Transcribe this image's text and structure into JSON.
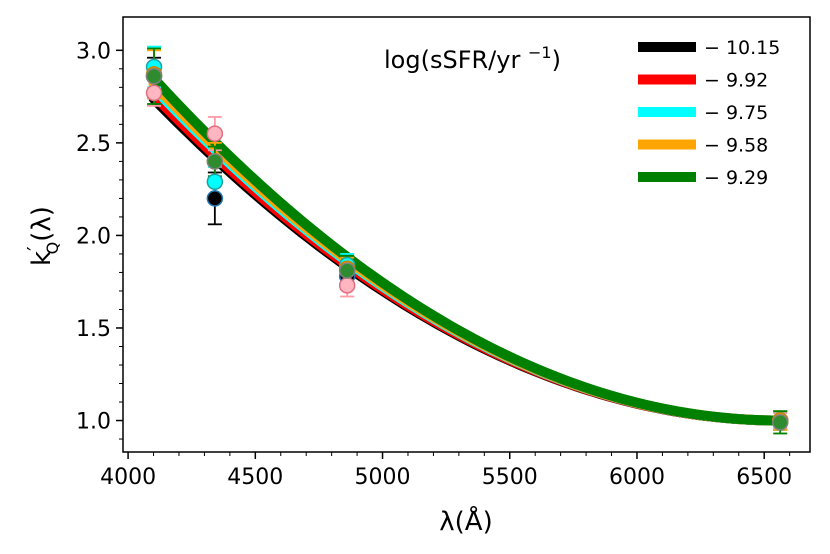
{
  "chart_data": {
    "type": "line",
    "xlabel": "λ(Å)",
    "ylabel_main": "k",
    "ylabel_prime": "′",
    "ylabel_sub": "Q",
    "ylabel_tail": "(λ)",
    "xlim": [
      3980,
      6680
    ],
    "ylim": [
      0.83,
      3.18
    ],
    "x_ticks": [
      4000,
      4500,
      5000,
      5500,
      6000,
      6500
    ],
    "x_tick_labels": [
      "4000",
      "4500",
      "5000",
      "5500",
      "6000",
      "6500"
    ],
    "y_ticks": [
      1.0,
      1.5,
      2.0,
      2.5,
      3.0
    ],
    "y_tick_labels": [
      "1.0",
      "1.5",
      "2.0",
      "2.5",
      "3.0"
    ],
    "legend": {
      "title": "log(sSFR/yr⁻¹)",
      "placement": "top-right"
    },
    "series": [
      {
        "name": "− 10.15",
        "color": "#000000",
        "curve": {
          "x": [
            4100,
            6563
          ],
          "y_start": 2.74,
          "y_end": 1.0,
          "power": 1.25
        },
        "points": [
          {
            "x": 4102,
            "y": 2.86,
            "err": 0.1,
            "face": "#000000"
          },
          {
            "x": 4341,
            "y": 2.2,
            "err": 0.14,
            "face": "#000000"
          },
          {
            "x": 4861,
            "y": 1.78,
            "err": 0.07,
            "face": "#000000"
          },
          {
            "x": 6563,
            "y": 1.0,
            "err": 0.05,
            "face": "#000000"
          }
        ]
      },
      {
        "name": "− 9.92",
        "color": "#ff0000",
        "curve": {
          "x": [
            4100,
            6563
          ],
          "y_start": 2.76,
          "y_end": 1.0,
          "power": 1.22
        },
        "points": [
          {
            "x": 4102,
            "y": 2.77,
            "err": 0.07,
            "face": "#ffb6c1"
          },
          {
            "x": 4341,
            "y": 2.55,
            "err": 0.09,
            "face": "#ffb6c1"
          },
          {
            "x": 4861,
            "y": 1.73,
            "err": 0.06,
            "face": "#ffb6c1"
          },
          {
            "x": 6563,
            "y": 1.0,
            "err": 0.04,
            "face": "#ffb6c1"
          }
        ]
      },
      {
        "name": "− 9.75",
        "color": "#00ffff",
        "curve": {
          "x": [
            4100,
            6563
          ],
          "y_start": 2.8,
          "y_end": 1.0,
          "power": 1.2
        },
        "points": [
          {
            "x": 4102,
            "y": 2.91,
            "err": 0.11,
            "face": "#00ffff"
          },
          {
            "x": 4341,
            "y": 2.29,
            "err": 0.08,
            "face": "#00ffff"
          },
          {
            "x": 4861,
            "y": 1.84,
            "err": 0.06,
            "face": "#00ffff"
          },
          {
            "x": 6563,
            "y": 1.0,
            "err": 0.05,
            "face": "#00ffff"
          }
        ]
      },
      {
        "name": "− 9.58",
        "color": "#ffa500",
        "curve": {
          "x": [
            4100,
            6563
          ],
          "y_start": 2.82,
          "y_end": 1.0,
          "power": 1.17
        },
        "points": [
          {
            "x": 4102,
            "y": 2.87,
            "err": 0.13,
            "face": "#ffa500"
          },
          {
            "x": 4341,
            "y": 2.4,
            "err": 0.1,
            "face": "#ffa500"
          },
          {
            "x": 4861,
            "y": 1.82,
            "err": 0.06,
            "face": "#ffa500"
          },
          {
            "x": 6563,
            "y": 1.0,
            "err": 0.05,
            "face": "#ffa500"
          }
        ]
      },
      {
        "name": "− 9.29",
        "color": "#008000",
        "curve": {
          "x": [
            4100,
            6563
          ],
          "y_start": 2.85,
          "y_end": 1.0,
          "power": 1.15
        },
        "points": [
          {
            "x": 4102,
            "y": 2.86,
            "err": 0.15,
            "face": "#2e8b2e"
          },
          {
            "x": 4341,
            "y": 2.4,
            "err": 0.08,
            "face": "#2e8b2e"
          },
          {
            "x": 4861,
            "y": 1.81,
            "err": 0.08,
            "face": "#2e8b2e"
          },
          {
            "x": 6563,
            "y": 0.99,
            "err": 0.06,
            "face": "#2e8b2e"
          }
        ]
      }
    ]
  }
}
